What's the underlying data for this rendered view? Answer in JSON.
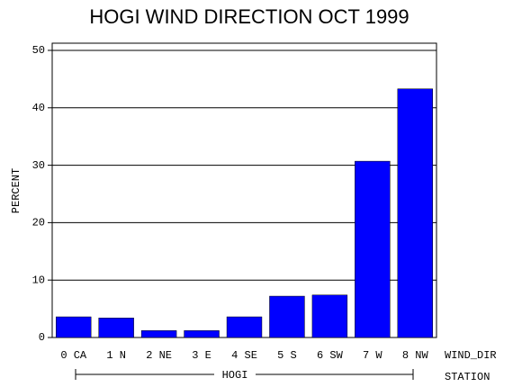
{
  "chart_data": {
    "type": "bar",
    "title": "HOGI WIND DIRECTION OCT 1999",
    "y_label": "PERCENT",
    "x_label": "WIND_DIR",
    "group": "HOGI",
    "group_label": "STATION",
    "categories": [
      "0 CA",
      "1 N",
      "2 NE",
      "3 E",
      "4 SE",
      "5 S",
      "6 SW",
      "7 W",
      "8 NW"
    ],
    "values": [
      3.6,
      3.4,
      1.2,
      1.2,
      3.6,
      7.2,
      7.4,
      30.7,
      43.3
    ],
    "color": "#0000ff",
    "ylim": [
      0,
      51.25
    ],
    "yticks": [
      0,
      10,
      20,
      30,
      40,
      50
    ],
    "grid": true
  }
}
